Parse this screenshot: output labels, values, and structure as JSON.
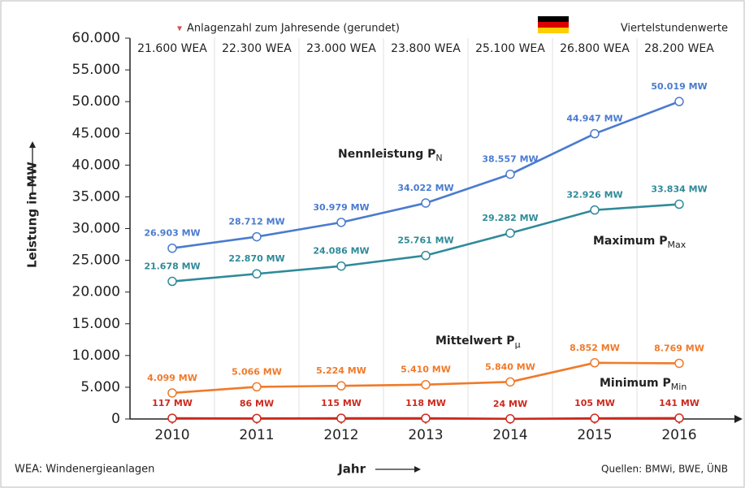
{
  "chart_data": {
    "type": "line",
    "header_note": "Anlagenzahl zum Jahresende (gerundet)",
    "corner_note": "Viertelstundenwerte",
    "footnote": "WEA: Windenergieanlagen",
    "source": "Quellen: BMWi, BWE, ÜNB",
    "y_label": "Leistung in MW",
    "x_label": "Jahr",
    "categories": [
      "2010",
      "2011",
      "2012",
      "2013",
      "2014",
      "2015",
      "2016"
    ],
    "installations": [
      "21.600 WEA",
      "22.300 WEA",
      "23.000 WEA",
      "23.800 WEA",
      "25.100 WEA",
      "26.800 WEA",
      "28.200 WEA"
    ],
    "ylim": [
      0,
      60000
    ],
    "yticks": [
      0,
      {
        "value": 5000,
        "label": "5.000"
      },
      {
        "value": 10000,
        "label": "10.000"
      },
      {
        "value": 15000,
        "label": "15.000"
      },
      {
        "value": 20000,
        "label": "20.000"
      },
      {
        "value": 25000,
        "label": "25.000"
      },
      {
        "value": 30000,
        "label": "30.000"
      },
      {
        "value": 35000,
        "label": "35.000"
      },
      {
        "value": 40000,
        "label": "40.000"
      },
      {
        "value": 45000,
        "label": "45.000"
      },
      {
        "value": 50000,
        "label": "50.000"
      },
      {
        "value": 55000,
        "label": "55.000"
      },
      {
        "value": 60000,
        "label": "60.000"
      }
    ],
    "series": [
      {
        "name": "Nennleistung P",
        "subscript": "N",
        "color": "#4a7bcf",
        "values": [
          26903,
          28712,
          30979,
          34022,
          38557,
          44947,
          50019
        ],
        "value_labels": [
          "26.903 MW",
          "28.712 MW",
          "30.979 MW",
          "34.022 MW",
          "38.557 MW",
          "44.947 MW",
          "50.019 MW"
        ]
      },
      {
        "name": "Maximum P",
        "subscript": "Max",
        "color": "#2f8a99",
        "values": [
          21678,
          22870,
          24086,
          25761,
          29282,
          32926,
          33834
        ],
        "value_labels": [
          "21.678 MW",
          "22.870 MW",
          "24.086 MW",
          "25.761 MW",
          "29.282 MW",
          "32.926 MW",
          "33.834 MW"
        ]
      },
      {
        "name": "Mittelwert P",
        "subscript": "µ",
        "color": "#f07a2a",
        "values": [
          4099,
          5066,
          5224,
          5410,
          5840,
          8852,
          8769
        ],
        "value_labels": [
          "4.099 MW",
          "5.066 MW",
          "5.224 MW",
          "5.410 MW",
          "5.840 MW",
          "8.852 MW",
          "8.769 MW"
        ]
      },
      {
        "name": "Minimum P",
        "subscript": "Min",
        "color": "#cc2a1e",
        "values": [
          117,
          86,
          115,
          118,
          24,
          105,
          141
        ],
        "value_labels": [
          "117 MW",
          "86 MW",
          "115 MW",
          "118 MW",
          "24 MW",
          "105 MW",
          "141 MW"
        ]
      }
    ]
  }
}
